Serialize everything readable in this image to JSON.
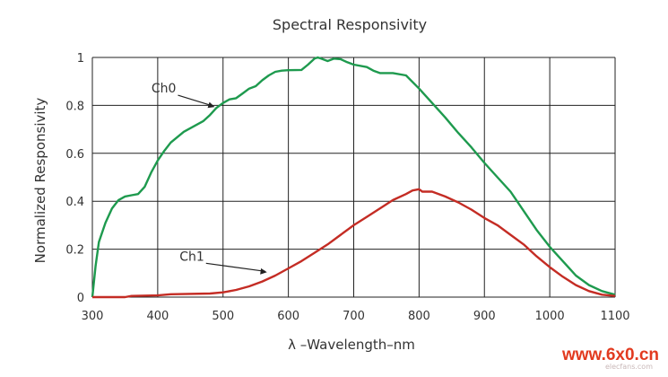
{
  "chart_data": {
    "type": "line",
    "title": "Spectral Responsivity",
    "xlabel": "λ –Wavelength–nm",
    "ylabel": "Normalized Responsivity",
    "xlim": [
      300,
      1100
    ],
    "ylim": [
      0,
      1
    ],
    "x_ticks": [
      "300",
      "400",
      "500",
      "600",
      "700",
      "800",
      "900",
      "1000",
      "1100"
    ],
    "y_ticks": [
      "0",
      "0.2",
      "0.4",
      "0.6",
      "0.8",
      "1"
    ],
    "grid": true,
    "legend": "none",
    "series": [
      {
        "name": "Ch0",
        "color": "#1e9a4e",
        "points": [
          [
            300,
            0.0
          ],
          [
            305,
            0.13
          ],
          [
            310,
            0.23
          ],
          [
            320,
            0.31
          ],
          [
            330,
            0.37
          ],
          [
            340,
            0.405
          ],
          [
            350,
            0.42
          ],
          [
            360,
            0.425
          ],
          [
            370,
            0.43
          ],
          [
            380,
            0.46
          ],
          [
            390,
            0.52
          ],
          [
            400,
            0.57
          ],
          [
            410,
            0.61
          ],
          [
            420,
            0.645
          ],
          [
            440,
            0.69
          ],
          [
            460,
            0.72
          ],
          [
            470,
            0.735
          ],
          [
            480,
            0.76
          ],
          [
            490,
            0.79
          ],
          [
            500,
            0.81
          ],
          [
            510,
            0.825
          ],
          [
            520,
            0.83
          ],
          [
            530,
            0.85
          ],
          [
            540,
            0.87
          ],
          [
            550,
            0.88
          ],
          [
            560,
            0.905
          ],
          [
            570,
            0.925
          ],
          [
            580,
            0.94
          ],
          [
            590,
            0.945
          ],
          [
            600,
            0.947
          ],
          [
            620,
            0.948
          ],
          [
            630,
            0.97
          ],
          [
            640,
            0.995
          ],
          [
            645,
            1.0
          ],
          [
            650,
            0.995
          ],
          [
            660,
            0.985
          ],
          [
            670,
            0.995
          ],
          [
            680,
            0.993
          ],
          [
            690,
            0.98
          ],
          [
            700,
            0.97
          ],
          [
            720,
            0.96
          ],
          [
            730,
            0.945
          ],
          [
            740,
            0.935
          ],
          [
            760,
            0.935
          ],
          [
            780,
            0.925
          ],
          [
            800,
            0.87
          ],
          [
            820,
            0.81
          ],
          [
            840,
            0.75
          ],
          [
            860,
            0.685
          ],
          [
            880,
            0.625
          ],
          [
            900,
            0.56
          ],
          [
            920,
            0.5
          ],
          [
            940,
            0.44
          ],
          [
            950,
            0.4
          ],
          [
            960,
            0.36
          ],
          [
            980,
            0.28
          ],
          [
            1000,
            0.21
          ],
          [
            1020,
            0.15
          ],
          [
            1040,
            0.09
          ],
          [
            1060,
            0.05
          ],
          [
            1080,
            0.025
          ],
          [
            1100,
            0.01
          ]
        ]
      },
      {
        "name": "Ch1",
        "color": "#c42c24",
        "points": [
          [
            300,
            0.0
          ],
          [
            350,
            0.0
          ],
          [
            360,
            0.005
          ],
          [
            400,
            0.007
          ],
          [
            420,
            0.012
          ],
          [
            480,
            0.015
          ],
          [
            500,
            0.02
          ],
          [
            520,
            0.03
          ],
          [
            540,
            0.045
          ],
          [
            560,
            0.065
          ],
          [
            580,
            0.09
          ],
          [
            600,
            0.12
          ],
          [
            620,
            0.15
          ],
          [
            640,
            0.185
          ],
          [
            660,
            0.22
          ],
          [
            680,
            0.26
          ],
          [
            700,
            0.3
          ],
          [
            720,
            0.335
          ],
          [
            740,
            0.37
          ],
          [
            760,
            0.405
          ],
          [
            780,
            0.43
          ],
          [
            790,
            0.445
          ],
          [
            800,
            0.45
          ],
          [
            805,
            0.44
          ],
          [
            820,
            0.44
          ],
          [
            840,
            0.42
          ],
          [
            860,
            0.395
          ],
          [
            880,
            0.365
          ],
          [
            900,
            0.33
          ],
          [
            920,
            0.3
          ],
          [
            940,
            0.26
          ],
          [
            960,
            0.22
          ],
          [
            980,
            0.17
          ],
          [
            1000,
            0.125
          ],
          [
            1020,
            0.085
          ],
          [
            1040,
            0.05
          ],
          [
            1060,
            0.025
          ],
          [
            1080,
            0.01
          ],
          [
            1100,
            0.005
          ]
        ]
      }
    ],
    "annotations": [
      {
        "text": "Ch0",
        "series": "Ch0",
        "arrow_to": [
          490,
          0.79
        ]
      },
      {
        "text": "Ch1",
        "series": "Ch1",
        "arrow_to": [
          570,
          0.1
        ]
      }
    ]
  },
  "watermark": {
    "text": "www.6x0.cn",
    "subtext": "elecfans.com"
  }
}
